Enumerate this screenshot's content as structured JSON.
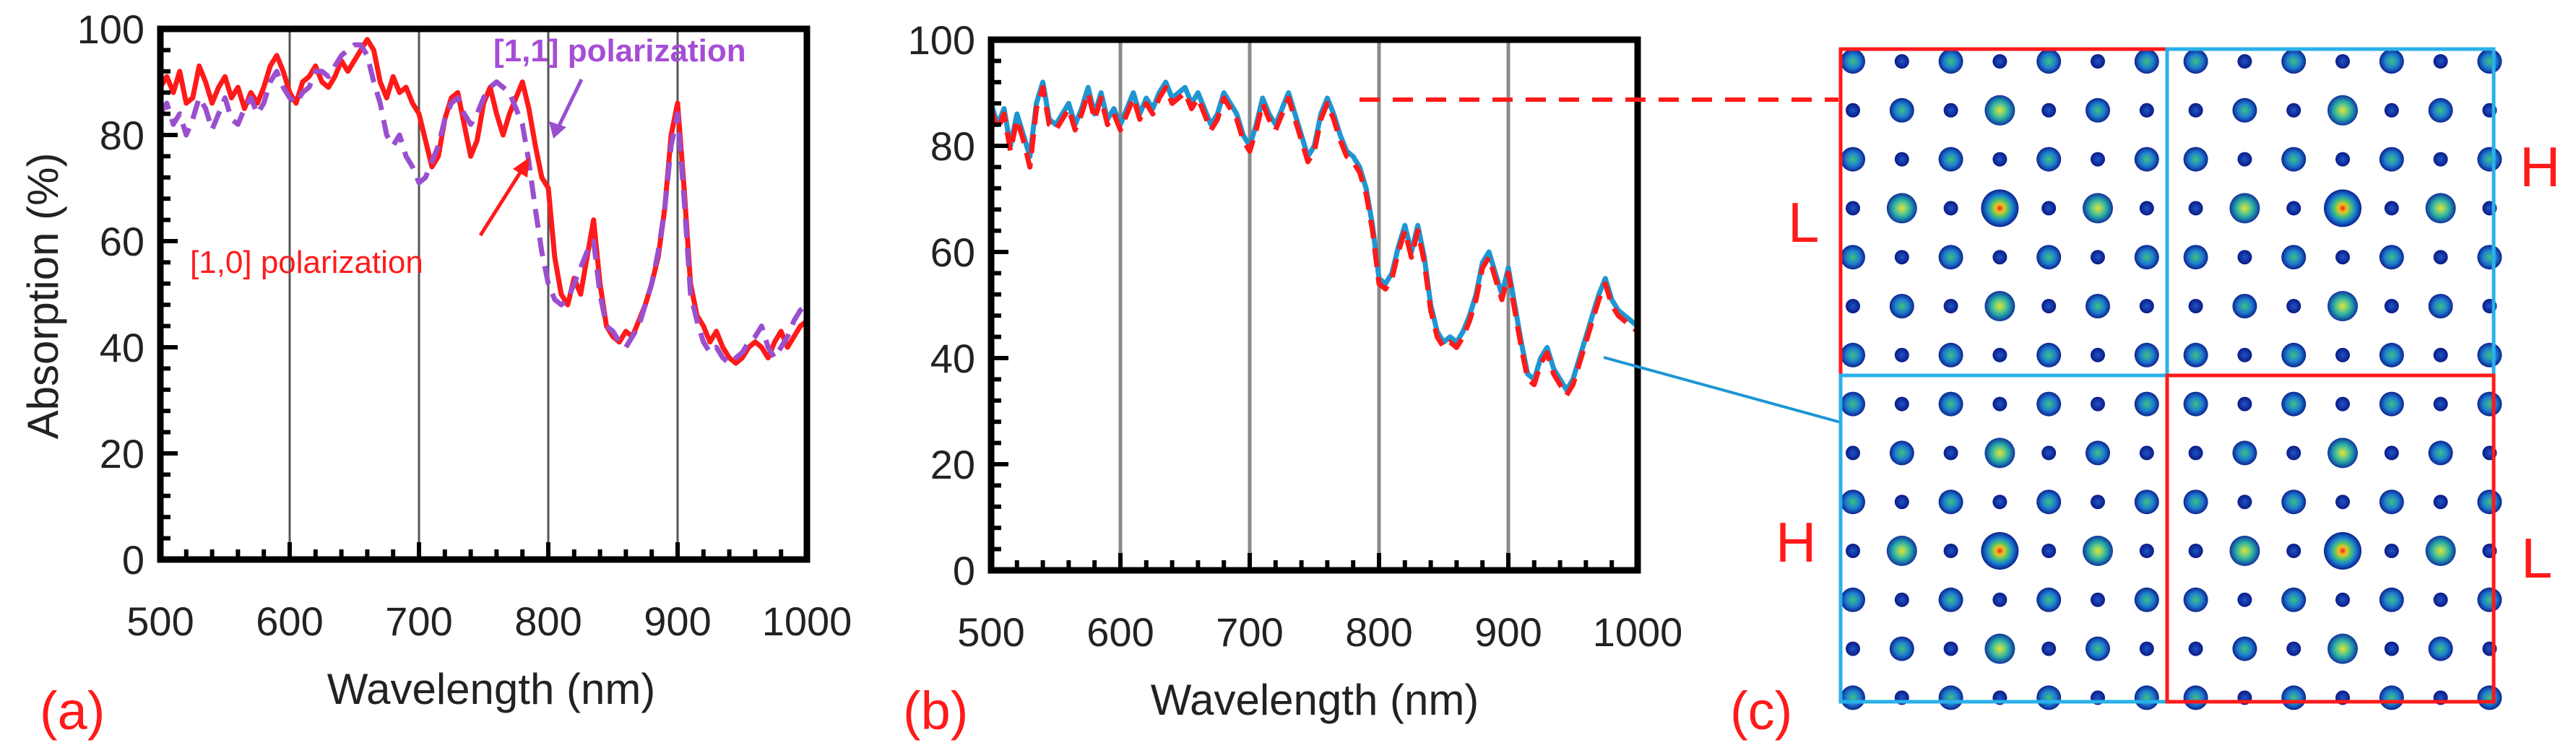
{
  "colors": {
    "red": "#ff1a1a",
    "purple": "#9a4fcf",
    "blue": "#1e96d2",
    "grid": "#555555",
    "gridLight": "#8a8a8a",
    "quadBlue": "#2ab0ea"
  },
  "panel_labels": {
    "a": "(a)",
    "b": "(b)",
    "c": "(c)"
  },
  "annotations": {
    "pol10": "[1,0] polarization",
    "pol11": "[1,1] polarization"
  },
  "quadrants": {
    "tl": "L",
    "tr": "H",
    "bl": "H",
    "br": "L"
  },
  "chart_data": [
    {
      "id": "a",
      "type": "line",
      "xlabel": "Wavelength (nm)",
      "ylabel": "Absorption (%)",
      "xlim": [
        500,
        1000
      ],
      "ylim": [
        0,
        100
      ],
      "xticks": [
        500,
        600,
        700,
        800,
        900,
        1000
      ],
      "yticks": [
        0,
        20,
        40,
        60,
        80,
        100
      ],
      "vlines": [
        600,
        700,
        800,
        900
      ],
      "series": [
        {
          "name": "[1,0] polarization",
          "style": "solid",
          "color": "#ff1a1a",
          "x": [
            500,
            505,
            510,
            515,
            520,
            525,
            530,
            535,
            540,
            545,
            550,
            555,
            560,
            565,
            570,
            575,
            580,
            585,
            590,
            595,
            600,
            605,
            610,
            615,
            620,
            625,
            630,
            635,
            640,
            645,
            650,
            655,
            660,
            665,
            670,
            675,
            680,
            685,
            690,
            695,
            700,
            705,
            710,
            715,
            720,
            725,
            730,
            735,
            740,
            745,
            750,
            755,
            760,
            765,
            770,
            775,
            780,
            785,
            790,
            795,
            800,
            805,
            810,
            815,
            820,
            825,
            830,
            835,
            840,
            845,
            850,
            855,
            860,
            865,
            870,
            875,
            880,
            885,
            890,
            895,
            900,
            905,
            910,
            915,
            920,
            925,
            930,
            935,
            940,
            945,
            950,
            955,
            960,
            965,
            970,
            975,
            980,
            985,
            990,
            995,
            1000
          ],
          "y": [
            89,
            91,
            88,
            92,
            86,
            87,
            93,
            90,
            86,
            89,
            91,
            87,
            89,
            85,
            88,
            86,
            89,
            93,
            95,
            92,
            88,
            86,
            90,
            91,
            93,
            90,
            89,
            91,
            94,
            92,
            94,
            96,
            98,
            96,
            90,
            87,
            91,
            88,
            89,
            86,
            84,
            79,
            74,
            76,
            83,
            87,
            88,
            82,
            76,
            79,
            86,
            89,
            84,
            80,
            84,
            87,
            90,
            85,
            78,
            72,
            70,
            57,
            50,
            48,
            53,
            50,
            57,
            64,
            52,
            44,
            42,
            41,
            43,
            42,
            45,
            48,
            52,
            57,
            66,
            80,
            86,
            70,
            52,
            46,
            44,
            41,
            43,
            40,
            38,
            37,
            38,
            40,
            41,
            40,
            38,
            41,
            43,
            40,
            42,
            44,
            45
          ]
        },
        {
          "name": "[1,1] polarization",
          "style": "dashed",
          "color": "#9a4fcf",
          "x": [
            500,
            505,
            510,
            515,
            520,
            525,
            530,
            535,
            540,
            545,
            550,
            555,
            560,
            565,
            570,
            575,
            580,
            585,
            590,
            595,
            600,
            605,
            610,
            615,
            620,
            625,
            630,
            635,
            640,
            645,
            650,
            655,
            660,
            665,
            670,
            675,
            680,
            685,
            690,
            695,
            700,
            705,
            710,
            715,
            720,
            725,
            730,
            735,
            740,
            745,
            750,
            755,
            760,
            765,
            770,
            775,
            780,
            785,
            790,
            795,
            800,
            805,
            810,
            815,
            820,
            825,
            830,
            835,
            840,
            845,
            850,
            855,
            860,
            865,
            870,
            875,
            880,
            885,
            890,
            895,
            900,
            905,
            910,
            915,
            920,
            925,
            930,
            935,
            940,
            945,
            950,
            955,
            960,
            965,
            970,
            975,
            980,
            985,
            990,
            995,
            1000
          ],
          "y": [
            84,
            86,
            82,
            84,
            80,
            83,
            87,
            85,
            81,
            84,
            87,
            83,
            82,
            85,
            87,
            84,
            86,
            90,
            92,
            89,
            87,
            86,
            88,
            89,
            92,
            92,
            91,
            93,
            95,
            96,
            97,
            97,
            95,
            90,
            86,
            80,
            78,
            80,
            76,
            74,
            71,
            72,
            75,
            78,
            83,
            86,
            87,
            84,
            82,
            84,
            87,
            89,
            90,
            89,
            88,
            85,
            82,
            75,
            66,
            58,
            52,
            49,
            48,
            49,
            52,
            55,
            58,
            60,
            50,
            44,
            43,
            41,
            40,
            42,
            44,
            48,
            52,
            58,
            66,
            78,
            84,
            68,
            50,
            45,
            41,
            39,
            40,
            38,
            37,
            38,
            39,
            41,
            42,
            44,
            40,
            38,
            40,
            42,
            45,
            47,
            48
          ]
        }
      ]
    },
    {
      "id": "b",
      "type": "line",
      "xlabel": "Wavelength (nm)",
      "ylabel": "",
      "xlim": [
        500,
        1000
      ],
      "ylim": [
        0,
        100
      ],
      "xticks": [
        500,
        600,
        700,
        800,
        900,
        1000
      ],
      "yticks": [
        0,
        20,
        40,
        60,
        80,
        100
      ],
      "vlines": [
        600,
        700,
        800,
        900
      ],
      "series": [
        {
          "name": "blue",
          "style": "solid",
          "color": "#1e96d2",
          "x": [
            500,
            505,
            510,
            515,
            520,
            525,
            530,
            535,
            540,
            545,
            550,
            555,
            560,
            565,
            570,
            575,
            580,
            585,
            590,
            595,
            600,
            605,
            610,
            615,
            620,
            625,
            630,
            635,
            640,
            645,
            650,
            655,
            660,
            665,
            670,
            675,
            680,
            685,
            690,
            695,
            700,
            705,
            710,
            715,
            720,
            725,
            730,
            735,
            740,
            745,
            750,
            755,
            760,
            765,
            770,
            775,
            780,
            785,
            790,
            795,
            800,
            805,
            810,
            815,
            820,
            825,
            830,
            835,
            840,
            845,
            850,
            855,
            860,
            865,
            870,
            875,
            880,
            885,
            890,
            895,
            900,
            905,
            910,
            915,
            920,
            925,
            930,
            935,
            940,
            945,
            950,
            955,
            960,
            965,
            970,
            975,
            980,
            985,
            990,
            995,
            1000
          ],
          "y": [
            88,
            84,
            87,
            80,
            86,
            82,
            78,
            88,
            92,
            85,
            84,
            86,
            88,
            84,
            87,
            91,
            86,
            90,
            85,
            87,
            84,
            87,
            90,
            86,
            89,
            87,
            90,
            92,
            89,
            90,
            91,
            88,
            90,
            87,
            84,
            86,
            90,
            88,
            86,
            82,
            80,
            84,
            89,
            86,
            84,
            87,
            90,
            86,
            82,
            78,
            80,
            86,
            89,
            86,
            82,
            79,
            78,
            76,
            72,
            65,
            55,
            54,
            56,
            61,
            65,
            60,
            65,
            59,
            50,
            45,
            43,
            44,
            43,
            45,
            48,
            52,
            58,
            60,
            56,
            52,
            57,
            50,
            43,
            37,
            36,
            40,
            42,
            38,
            36,
            34,
            36,
            40,
            44,
            48,
            52,
            55,
            51,
            49,
            48,
            47,
            46
          ]
        },
        {
          "name": "red dashed",
          "style": "dashed",
          "color": "#ff1a1a",
          "x": [
            500,
            505,
            510,
            515,
            520,
            525,
            530,
            535,
            540,
            545,
            550,
            555,
            560,
            565,
            570,
            575,
            580,
            585,
            590,
            595,
            600,
            605,
            610,
            615,
            620,
            625,
            630,
            635,
            640,
            645,
            650,
            655,
            660,
            665,
            670,
            675,
            680,
            685,
            690,
            695,
            700,
            705,
            710,
            715,
            720,
            725,
            730,
            735,
            740,
            745,
            750,
            755,
            760,
            765,
            770,
            775,
            780,
            785,
            790,
            795,
            800,
            805,
            810,
            815,
            820,
            825,
            830,
            835,
            840,
            845,
            850,
            855,
            860,
            865,
            870,
            875,
            880,
            885,
            890,
            895,
            900,
            905,
            910,
            915,
            920,
            925,
            930,
            935,
            940,
            945,
            950,
            955,
            960,
            965,
            970,
            975,
            980,
            985,
            990,
            995,
            1000
          ],
          "y": [
            87,
            83,
            86,
            79,
            85,
            81,
            76,
            87,
            91,
            84,
            83,
            85,
            87,
            83,
            86,
            90,
            85,
            89,
            84,
            86,
            83,
            86,
            89,
            85,
            88,
            86,
            89,
            91,
            88,
            89,
            90,
            87,
            89,
            86,
            83,
            85,
            89,
            87,
            85,
            81,
            79,
            83,
            88,
            85,
            83,
            86,
            89,
            85,
            81,
            77,
            79,
            85,
            88,
            85,
            81,
            78,
            77,
            75,
            71,
            64,
            54,
            53,
            55,
            60,
            64,
            59,
            64,
            58,
            49,
            44,
            42,
            43,
            42,
            44,
            47,
            51,
            57,
            59,
            55,
            51,
            56,
            49,
            42,
            36,
            35,
            39,
            41,
            37,
            35,
            33,
            35,
            39,
            43,
            47,
            51,
            54,
            50,
            48,
            47,
            46,
            45
          ]
        }
      ]
    }
  ]
}
